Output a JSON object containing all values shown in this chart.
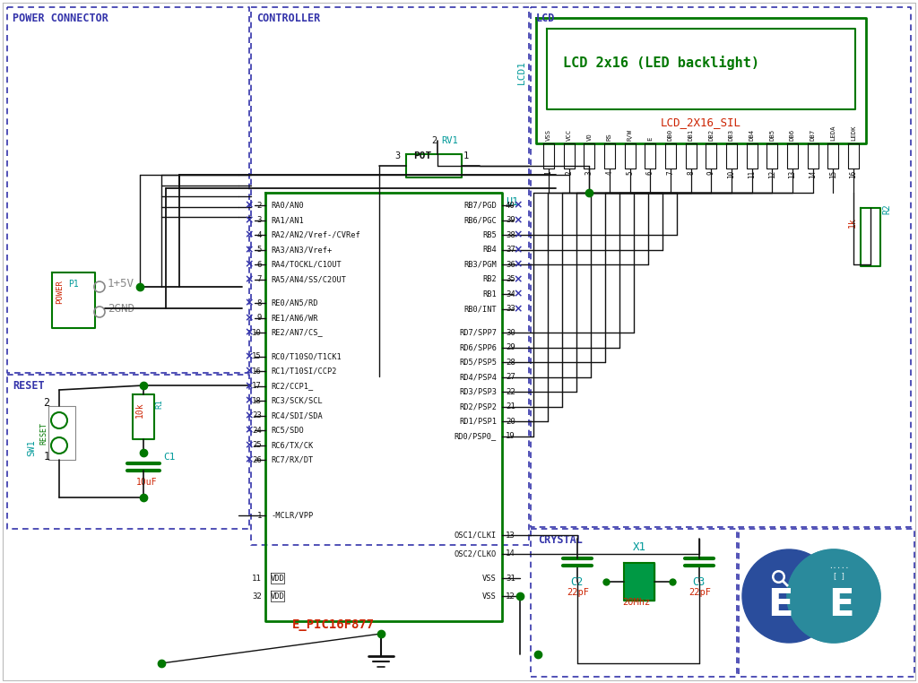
{
  "bg_color": "#ffffff",
  "blue": "#3333aa",
  "green": "#007700",
  "red": "#cc2200",
  "cyan": "#009999",
  "black": "#111111",
  "gray": "#888888",
  "lcd_pins": [
    "VSS",
    "VCC",
    "VO",
    "RS",
    "R/W",
    "E",
    "DB0",
    "DB1",
    "DB2",
    "DB3",
    "DB4",
    "DB5",
    "DB6",
    "DB7",
    "LEDA",
    "LEDK"
  ],
  "pic_left_pins": [
    [
      "2",
      "RA0/AN0"
    ],
    [
      "3",
      "RA1/AN1"
    ],
    [
      "4",
      "RA2/AN2/Vref-/CVRef"
    ],
    [
      "5",
      "RA3/AN3/Vref+"
    ],
    [
      "6",
      "RA4/TOCKL/C1OUT"
    ],
    [
      "7",
      "RA5/AN4/SS/C2OUT"
    ],
    [
      "8",
      "RE0/AN5/RD"
    ],
    [
      "9",
      "RE1/AN6/WR"
    ],
    [
      "10",
      "RE2/AN7/CS_"
    ],
    [
      "15",
      "RC0/T10SO/T1CK1"
    ],
    [
      "16",
      "RC1/T10SI/CCP2"
    ],
    [
      "17",
      "RC2/CCP1_"
    ],
    [
      "18",
      "RC3/SCK/SCL"
    ],
    [
      "23",
      "RC4/SDI/SDA"
    ],
    [
      "24",
      "RC5/SDO"
    ],
    [
      "25",
      "RC6/TX/CK"
    ],
    [
      "26",
      "RC7/RX/DT"
    ]
  ],
  "pic_right_pins": [
    [
      "40",
      "RB7/PGD"
    ],
    [
      "39",
      "RB6/PGC"
    ],
    [
      "38",
      "RB5"
    ],
    [
      "37",
      "RB4"
    ],
    [
      "36",
      "RB3/PGM"
    ],
    [
      "35",
      "RB2"
    ],
    [
      "34",
      "RB1"
    ],
    [
      "33",
      "RB0/INT"
    ],
    [
      "30",
      "RD7/SPP7"
    ],
    [
      "29",
      "RD6/SPP6"
    ],
    [
      "28",
      "RD5/PSP5"
    ],
    [
      "27",
      "RD4/PSP4"
    ],
    [
      "22",
      "RD3/PSP3"
    ],
    [
      "21",
      "RD2/PSP2"
    ],
    [
      "20",
      "RD1/PSP1"
    ],
    [
      "19",
      "RD0/PSP0_"
    ]
  ]
}
